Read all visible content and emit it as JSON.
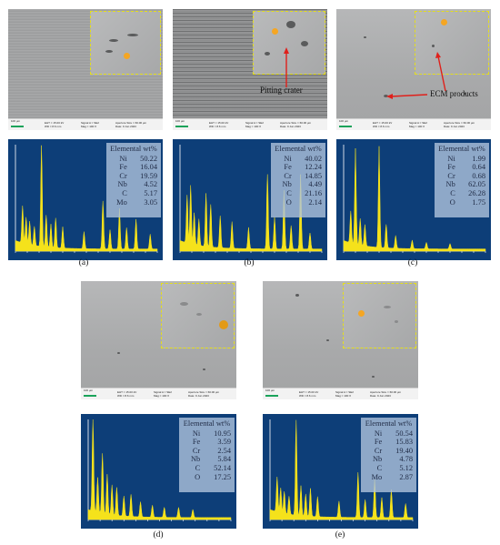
{
  "sem_info": {
    "scale": "100 µm",
    "eht": "EHT = 15.00 kV",
    "wd": "WD = 8.6 mm",
    "signal": "Signal A = SE2",
    "mag": "Mag = 100 X",
    "aperture": "Aperture Size = 60.00 µm",
    "date": "Date: 9 Jun 2023"
  },
  "annotations": {
    "pitting": "Pitting crater",
    "ecm": "ECM products"
  },
  "panels": [
    {
      "label": "(a)",
      "table_title": "Elemental wt%",
      "rows": [
        {
          "el": "Ni",
          "val": "50.22"
        },
        {
          "el": "Fe",
          "val": "16.04"
        },
        {
          "el": "Cr",
          "val": "19.59"
        },
        {
          "el": "Nb",
          "val": "4.52"
        },
        {
          "el": "C",
          "val": "5.17"
        },
        {
          "el": "Mo",
          "val": "3.05"
        }
      ]
    },
    {
      "label": "(b)",
      "table_title": "Elemental wt%",
      "rows": [
        {
          "el": "Ni",
          "val": "40.02"
        },
        {
          "el": "Fe",
          "val": "12.24"
        },
        {
          "el": "Cr",
          "val": "14.85"
        },
        {
          "el": "Nb",
          "val": "4.49"
        },
        {
          "el": "C",
          "val": "21.16"
        },
        {
          "el": "O",
          "val": "2.14"
        }
      ]
    },
    {
      "label": "(c)",
      "table_title": "Elemental wt%",
      "rows": [
        {
          "el": "Ni",
          "val": "1.99"
        },
        {
          "el": "Fe",
          "val": "0.64"
        },
        {
          "el": "Cr",
          "val": "0.68"
        },
        {
          "el": "Nb",
          "val": "62.05"
        },
        {
          "el": "C",
          "val": "26.28"
        },
        {
          "el": "O",
          "val": "1.75"
        }
      ]
    },
    {
      "label": "(d)",
      "table_title": "Elemental wt%",
      "rows": [
        {
          "el": "Ni",
          "val": "10.95"
        },
        {
          "el": "Fe",
          "val": "3.59"
        },
        {
          "el": "Cr",
          "val": "2.54"
        },
        {
          "el": "Nb",
          "val": "5.84"
        },
        {
          "el": "C",
          "val": "52.14"
        },
        {
          "el": "O",
          "val": "17.25"
        }
      ]
    },
    {
      "label": "(e)",
      "table_title": "Elemental wt%",
      "rows": [
        {
          "el": "Ni",
          "val": "50.54"
        },
        {
          "el": "Fe",
          "val": "15.83"
        },
        {
          "el": "Cr",
          "val": "19.40"
        },
        {
          "el": "Nb",
          "val": "4.78"
        },
        {
          "el": "C",
          "val": "5.12"
        },
        {
          "el": "Mo",
          "val": "2.87"
        }
      ]
    }
  ],
  "colors": {
    "spectrum": "#f5e21b",
    "edx_bg": "#0d3e78",
    "inset_border": "#e5df1b",
    "spot": "#f5a623",
    "arrow": "#e0201b"
  }
}
